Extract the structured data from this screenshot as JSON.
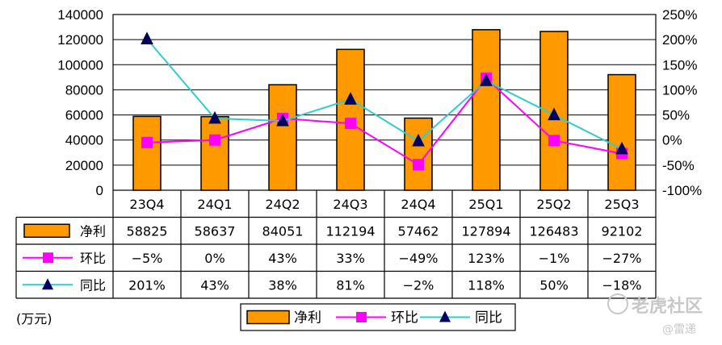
{
  "chart_data": {
    "type": "bar",
    "categories": [
      "23Q4",
      "24Q1",
      "24Q2",
      "24Q3",
      "24Q4",
      "25Q1",
      "25Q2",
      "25Q3"
    ],
    "series": [
      {
        "name": "净利",
        "kind": "bar",
        "axis": "left",
        "values": [
          58825,
          58637,
          84051,
          112194,
          57462,
          127894,
          126483,
          92102
        ],
        "labels": [
          "58825",
          "58637",
          "84051",
          "112194",
          "57462",
          "127894",
          "126483",
          "92102"
        ],
        "color": "#FF9900"
      },
      {
        "name": "环比",
        "kind": "line",
        "axis": "right",
        "values": [
          -5,
          0,
          43,
          33,
          -49,
          123,
          -1,
          -27
        ],
        "labels": [
          "-5%",
          "0%",
          "43%",
          "33%",
          "-49%",
          "123%",
          "-1%",
          "-27%"
        ],
        "color": "#FF00FF",
        "marker": "square"
      },
      {
        "name": "同比",
        "kind": "line",
        "axis": "right",
        "values": [
          201,
          43,
          38,
          81,
          -2,
          118,
          50,
          -18
        ],
        "labels": [
          "201%",
          "43%",
          "38%",
          "81%",
          "-2%",
          "118%",
          "50%",
          "-18%"
        ],
        "color": "#33CCCC",
        "marker": "triangle"
      }
    ],
    "ylim_left": [
      0,
      140000
    ],
    "ylim_right": [
      -100,
      250
    ],
    "yticks_left": [
      "0",
      "20000",
      "40000",
      "60000",
      "80000",
      "100000",
      "120000",
      "140000"
    ],
    "yticks_right": [
      "-100%",
      "-50%",
      "0%",
      "50%",
      "100%",
      "150%",
      "200%",
      "250%"
    ],
    "unit_label": "(万元)",
    "legend": [
      "净利",
      "环比",
      "同比"
    ],
    "legend_position": "bottom-center",
    "grid": true
  },
  "watermark": {
    "text": "老虎社区",
    "sub": "@雷递"
  }
}
